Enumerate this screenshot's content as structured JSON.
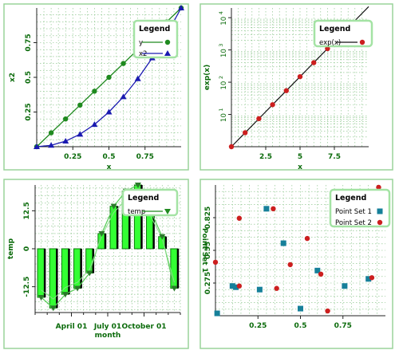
{
  "colors": {
    "axis_text": "#0b6b0b",
    "grid": "#7fbf7f",
    "panel_border": "#9ad39a",
    "legend_border": "#a4e3a4",
    "green_line": "#1f8a1f",
    "blue_line": "#1a1ab0",
    "red_point": "#cc1f1f",
    "teal_point": "#16809a",
    "bar_fill": "#33ff33"
  },
  "chart_data": [
    {
      "id": "tl",
      "type": "line",
      "xlabel": "x",
      "ylabel": "x2",
      "xlim": [
        0,
        1
      ],
      "ylim": [
        0,
        1
      ],
      "xticks": [
        {
          "v": 0.25,
          "label": "0.25"
        },
        {
          "v": 0.5,
          "label": "0.5"
        },
        {
          "v": 0.75,
          "label": "0.75"
        }
      ],
      "yticks": [
        {
          "v": 0.25,
          "label": "0.25"
        },
        {
          "v": 0.5,
          "label": "0.5"
        },
        {
          "v": 0.75,
          "label": "0.75"
        }
      ],
      "legend": {
        "title": "Legend",
        "position": "top-right"
      },
      "series": [
        {
          "name": "y",
          "color": "#1f8a1f",
          "marker": "circle",
          "x": [
            0,
            0.1,
            0.2,
            0.3,
            0.4,
            0.5,
            0.6,
            0.7,
            0.8,
            0.9,
            1.0
          ],
          "y": [
            0,
            0.1,
            0.2,
            0.3,
            0.4,
            0.5,
            0.6,
            0.7,
            0.8,
            0.9,
            1.0
          ],
          "marker_indices": [
            0,
            1,
            2,
            3,
            4,
            5,
            6,
            7,
            8,
            9,
            10
          ]
        },
        {
          "name": "x2",
          "color": "#1a1ab0",
          "marker": "triangle",
          "x": [
            0,
            0.1,
            0.2,
            0.3,
            0.4,
            0.5,
            0.6,
            0.7,
            0.8,
            0.9,
            1.0
          ],
          "y": [
            0,
            0.01,
            0.04,
            0.09,
            0.16,
            0.25,
            0.36,
            0.49,
            0.64,
            0.81,
            1.0
          ],
          "marker_indices": [
            0,
            1,
            2,
            3,
            4,
            5,
            6,
            7,
            8,
            9,
            10
          ]
        }
      ]
    },
    {
      "id": "tr",
      "type": "line",
      "scale_y": "log",
      "xlabel": "x",
      "ylabel": "exp(x)",
      "xlim": [
        0,
        10
      ],
      "ylim": [
        1,
        20000
      ],
      "xticks": [
        {
          "v": 2.5,
          "label": "2.5"
        },
        {
          "v": 5,
          "label": "5"
        },
        {
          "v": 7.5,
          "label": "7.5"
        }
      ],
      "yticks": [
        {
          "v": 10,
          "base": "10",
          "exp": "1"
        },
        {
          "v": 100,
          "base": "10",
          "exp": "2"
        },
        {
          "v": 1000,
          "base": "10",
          "exp": "3"
        },
        {
          "v": 10000,
          "base": "10",
          "exp": "4"
        }
      ],
      "legend": {
        "title": "Legend",
        "position": "top-right"
      },
      "series": [
        {
          "name": "exp(x)",
          "color": "#cc1f1f",
          "marker": "circle",
          "x": [
            0,
            1,
            2,
            3,
            4,
            5,
            6,
            7,
            8,
            9,
            10
          ],
          "y": [
            1,
            2.718,
            7.389,
            20.09,
            54.6,
            148.4,
            403.4,
            1097,
            2981,
            8103,
            22026
          ],
          "marker_indices": [
            0,
            1,
            2,
            3,
            4,
            5,
            6,
            7
          ]
        }
      ]
    },
    {
      "id": "bl",
      "type": "bar",
      "xlabel": "month",
      "ylabel": "temp",
      "ylim": [
        -21,
        21
      ],
      "yticks": [
        {
          "v": -12.5,
          "label": "-12.5"
        },
        {
          "v": 0,
          "label": "0"
        },
        {
          "v": 12.5,
          "label": "12.5"
        }
      ],
      "xticks": [
        {
          "v": 3,
          "label": "April 01"
        },
        {
          "v": 6,
          "label": "July 01"
        },
        {
          "v": 9,
          "label": "October 01"
        }
      ],
      "n_bars": 12,
      "values": [
        -16,
        -19.5,
        -15,
        -13,
        -8,
        5,
        14,
        19,
        21,
        13,
        4,
        -13
      ],
      "legend": {
        "title": "Legend",
        "position": "top-right"
      },
      "series": [
        {
          "name": "temp",
          "color": "#1f8a1f",
          "marker": "triangle-down"
        }
      ]
    },
    {
      "id": "br",
      "type": "scatter",
      "xlabel": "",
      "ylabel": "Point Set 1",
      "xlim": [
        0,
        1
      ],
      "ylim": [
        0,
        1.1
      ],
      "xticks": [
        {
          "v": 0.25,
          "label": "0.25"
        },
        {
          "v": 0.5,
          "label": "0.5"
        },
        {
          "v": 0.75,
          "label": "0.75"
        }
      ],
      "yticks": [
        {
          "v": 0.275,
          "label": "0.275"
        },
        {
          "v": 0.55,
          "label": "0.55"
        },
        {
          "v": 0.825,
          "label": "0.825"
        }
      ],
      "legend": {
        "title": "Legend",
        "position": "top-right"
      },
      "series": [
        {
          "name": "Point Set 1",
          "color": "#16809a",
          "marker": "square",
          "points": [
            [
              0.01,
              0.02
            ],
            [
              0.1,
              0.25
            ],
            [
              0.12,
              0.24
            ],
            [
              0.26,
              0.22
            ],
            [
              0.3,
              0.9
            ],
            [
              0.4,
              0.61
            ],
            [
              0.5,
              0.06
            ],
            [
              0.6,
              0.38
            ],
            [
              0.76,
              0.25
            ],
            [
              0.9,
              0.31
            ],
            [
              1.0,
              0.95
            ]
          ]
        },
        {
          "name": "Point Set 2",
          "color": "#cc1f1f",
          "marker": "circle",
          "points": [
            [
              0.0,
              0.45
            ],
            [
              0.14,
              0.25
            ],
            [
              0.14,
              0.82
            ],
            [
              0.34,
              0.9
            ],
            [
              0.36,
              0.23
            ],
            [
              0.44,
              0.43
            ],
            [
              0.54,
              0.65
            ],
            [
              0.62,
              0.35
            ],
            [
              0.66,
              0.04
            ],
            [
              0.82,
              0.79
            ],
            [
              0.92,
              0.32
            ],
            [
              0.96,
              1.08
            ]
          ]
        }
      ]
    }
  ]
}
